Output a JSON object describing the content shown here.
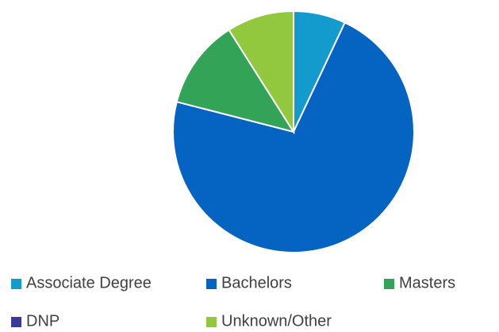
{
  "chart_data": {
    "type": "pie",
    "categories": [
      "Associate Degree",
      "Bachelors",
      "Masters",
      "DNP",
      "Unknown/Other"
    ],
    "values": [
      7,
      72,
      12,
      0,
      9
    ],
    "colors": [
      "#139bce",
      "#0563c1",
      "#33a457",
      "#3a3a9c",
      "#92c83e"
    ],
    "legend": "bottom"
  }
}
